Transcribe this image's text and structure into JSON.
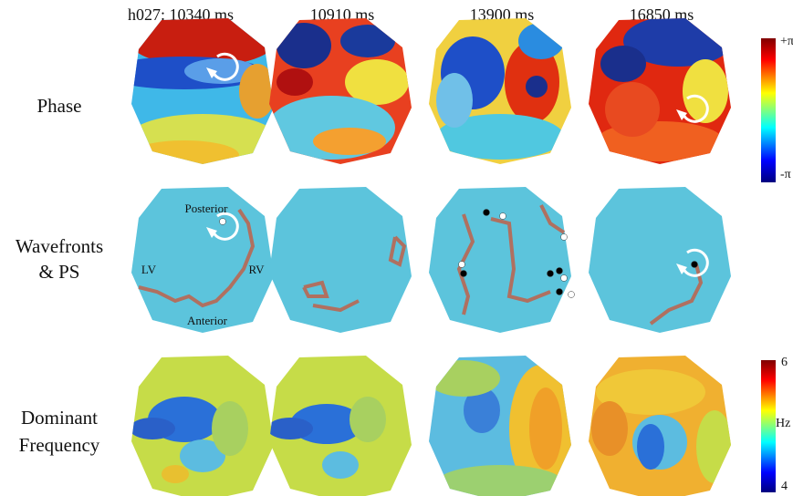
{
  "figure": {
    "columns": [
      "h027: 10340 ms",
      "10910 ms",
      "13900 ms",
      "16850 ms"
    ],
    "rows": {
      "phase": "Phase",
      "wavefronts": [
        "Wavefronts",
        "& PS"
      ],
      "frequency": [
        "Dominant",
        "Frequency"
      ]
    },
    "annotations": {
      "posterior": "Posterior",
      "anterior": "Anterior",
      "lv": "LV",
      "rv": "RV"
    },
    "phase_colorbar": {
      "top": "+π",
      "bottom": "-π"
    },
    "frequency_colorbar": {
      "top": "6",
      "unit": "Hz",
      "bottom": "4"
    }
  }
}
